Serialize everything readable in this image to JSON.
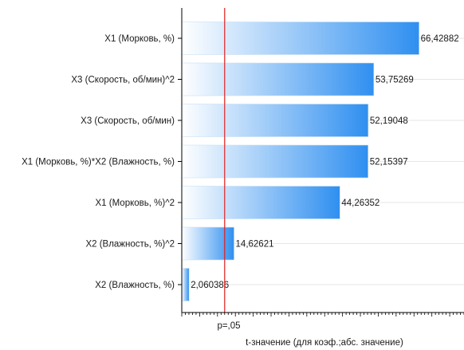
{
  "chart_data": {
    "type": "bar",
    "orientation": "horizontal",
    "categories": [
      "X1 (Морковь, %)",
      "X3 (Скорость, об/мин)^2",
      "X3 (Скорость, об/мин)",
      "X1 (Морковь, %)*X2 (Влажность, %)",
      "X1 (Морковь, %)^2",
      "X2 (Влажность, %)^2",
      "X2 (Влажность, %)"
    ],
    "values": [
      66.42882,
      53.75269,
      52.19048,
      52.15397,
      44.26352,
      14.62621,
      2.060386
    ],
    "value_labels": [
      "66,42882",
      "53,75269",
      "52,19048",
      "52,15397",
      "44,26352",
      "14,62621",
      "2,060386"
    ],
    "xlabel": "t-значение (для коэф.;абс. значение)",
    "threshold": {
      "value": 12,
      "label": "p=,05",
      "color": "#e02020"
    },
    "xlim": [
      0,
      79
    ],
    "grid": true,
    "bar_gradient": [
      "#ffffff",
      "#2f8ff0"
    ]
  }
}
